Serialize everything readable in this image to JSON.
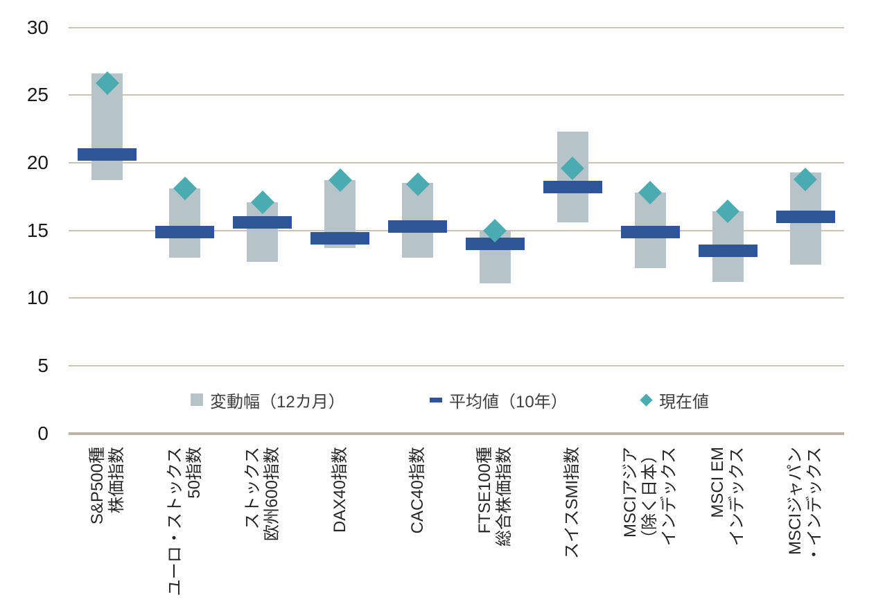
{
  "colors": {
    "range_bar": "#b6c3c9",
    "average_bar": "#2e5596",
    "current_marker": "#4aacb1",
    "gridline": "#cbc2b6",
    "axis_line": "#bdb3a7",
    "axis_text": "#1a1a1a",
    "xlabel_text": "#262626",
    "legend_text": "#3f3f3f"
  },
  "legend": {
    "items": [
      {
        "label": "変動幅（12カ月）",
        "marker": "square"
      },
      {
        "label": "平均値（10年）",
        "marker": "dash"
      },
      {
        "label": "現在値",
        "marker": "diamond"
      }
    ]
  },
  "chart_data": {
    "type": "bar",
    "subtype": "floating-range-bars-with-average-and-current-markers",
    "title": "",
    "xlabel": "",
    "ylabel": "",
    "ylim": [
      0,
      30
    ],
    "yticks": [
      0,
      5,
      10,
      15,
      20,
      25,
      30
    ],
    "grid": true,
    "legend_position": "bottom-inside",
    "categories": [
      "S&P500種株価指数",
      "ユーロ・ストックス50指数",
      "ストックス欧州600指数",
      "DAX40指数",
      "CAC40指数",
      "FTSE100種総合株価指数",
      "スイスSMI指数",
      "MSCIアジア（除く日本）インデックス",
      "MSCI EMインデックス",
      "MSCIジャパン・インデックス"
    ],
    "category_lines": [
      [
        "S&P500種",
        "株価指数"
      ],
      [
        "ユーロ・ストックス",
        "50指数"
      ],
      [
        "ストックス",
        "欧州600指数"
      ],
      [
        "DAX40指数"
      ],
      [
        "CAC40指数"
      ],
      [
        "FTSE100種",
        "総合株価指数"
      ],
      [
        "スイスSMI指数"
      ],
      [
        "MSCIアジア",
        "（除く日本）",
        "インデックス"
      ],
      [
        "MSCI EM",
        "インデックス"
      ],
      [
        "MSCIジャパン",
        "・インデックス"
      ]
    ],
    "series": [
      {
        "name": "変動幅（12カ月）",
        "role": "range",
        "high": [
          26.6,
          18.1,
          17.1,
          18.7,
          18.5,
          15.0,
          22.3,
          17.8,
          16.4,
          19.3
        ],
        "low": [
          18.7,
          13.0,
          12.7,
          13.7,
          13.0,
          11.1,
          15.6,
          12.2,
          11.2,
          12.5
        ]
      },
      {
        "name": "平均値（10年）",
        "role": "average-marker",
        "values": [
          20.6,
          14.9,
          15.6,
          14.4,
          15.3,
          14.0,
          18.2,
          14.9,
          13.5,
          16.0
        ]
      },
      {
        "name": "現在値",
        "role": "current-marker",
        "values": [
          25.9,
          18.1,
          17.1,
          18.7,
          18.4,
          15.0,
          19.6,
          17.8,
          16.4,
          18.8
        ]
      }
    ]
  }
}
